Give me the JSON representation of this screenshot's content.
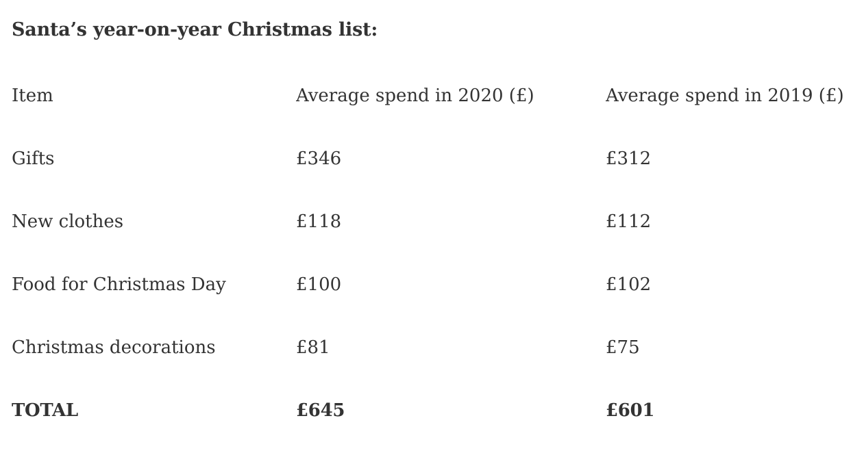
{
  "page": {
    "title": "Santa’s year-on-year Christmas list:"
  },
  "table": {
    "columns": [
      "Item",
      "Average spend in 2020 (£)",
      "Average spend in 2019 (£)"
    ],
    "rows": [
      {
        "item": "Gifts",
        "spend_2020": "£346",
        "spend_2019": "£312"
      },
      {
        "item": "New clothes",
        "spend_2020": "£118",
        "spend_2019": "£112"
      },
      {
        "item": "Food for Christmas Day",
        "spend_2020": "£100",
        "spend_2019": "£102"
      },
      {
        "item": "Christmas decorations",
        "spend_2020": "£81",
        "spend_2019": "£75"
      }
    ],
    "total": {
      "label": "TOTAL",
      "spend_2020": "£645",
      "spend_2019": "£601"
    }
  },
  "colors": {
    "background": "#ffffff",
    "text": "#333333"
  }
}
